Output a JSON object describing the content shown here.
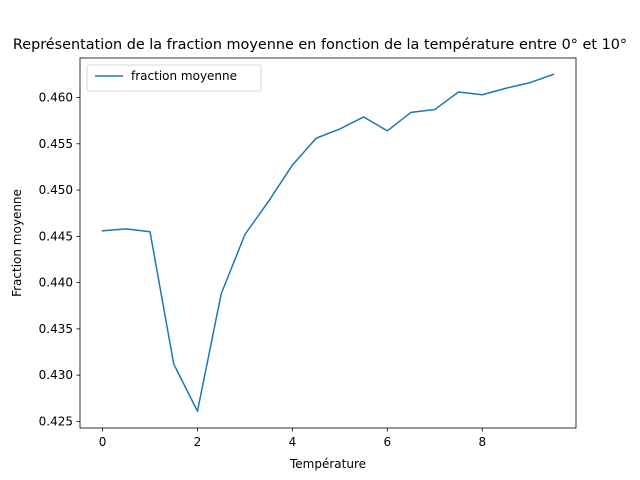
{
  "chart_data": {
    "type": "line",
    "title": "Représentation de la fraction moyenne en fonction de la température entre 0° et 10°",
    "xlabel": "Température",
    "ylabel": "Fraction moyenne",
    "xlim": [
      -0.475,
      9.975
    ],
    "ylim": [
      0.42429,
      0.46427
    ],
    "xticks": [
      0,
      2,
      4,
      6,
      8
    ],
    "yticks": [
      0.425,
      0.43,
      0.435,
      0.44,
      0.445,
      0.45,
      0.455,
      0.46
    ],
    "ytick_labels": [
      "0.425",
      "0.430",
      "0.435",
      "0.440",
      "0.445",
      "0.450",
      "0.455",
      "0.460"
    ],
    "grid": false,
    "legend_position": "upper-left",
    "series": [
      {
        "name": "fraction moyenne",
        "color": "#1f77b4",
        "x": [
          0,
          0.5,
          1,
          1.5,
          2,
          2.5,
          3,
          3.5,
          4,
          4.5,
          5,
          5.5,
          6,
          6.5,
          7,
          7.5,
          8,
          8.5,
          9,
          9.5
        ],
        "y": [
          0.4456,
          0.4458,
          0.4455,
          0.4312,
          0.4261,
          0.4388,
          0.4452,
          0.4488,
          0.4527,
          0.4556,
          0.4566,
          0.4579,
          0.4564,
          0.4584,
          0.4587,
          0.4606,
          0.4603,
          0.461,
          0.4616,
          0.4625
        ]
      }
    ]
  }
}
